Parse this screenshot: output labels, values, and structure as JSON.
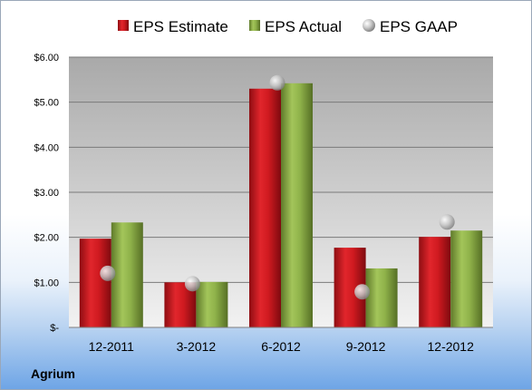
{
  "company_label": "Agrium",
  "chart_data": {
    "type": "bar",
    "categories": [
      "12-2011",
      "3-2012",
      "6-2012",
      "9-2012",
      "12-2012"
    ],
    "series": [
      {
        "name": "EPS Estimate",
        "kind": "bar",
        "color": "#c0141c",
        "values": [
          1.97,
          1.0,
          5.3,
          1.77,
          2.01
        ]
      },
      {
        "name": "EPS Actual",
        "kind": "bar",
        "color": "#86a843",
        "values": [
          2.33,
          1.01,
          5.42,
          1.31,
          2.15
        ]
      },
      {
        "name": "EPS GAAP",
        "kind": "marker",
        "color": "#a6a6a6",
        "values": [
          1.2,
          0.97,
          5.43,
          0.79,
          2.34
        ]
      }
    ],
    "yticks": [
      "$-",
      "$1.00",
      "$2.00",
      "$3.00",
      "$4.00",
      "$5.00",
      "$6.00"
    ],
    "ylim": [
      0,
      6
    ],
    "grid": true,
    "legend": "top"
  }
}
